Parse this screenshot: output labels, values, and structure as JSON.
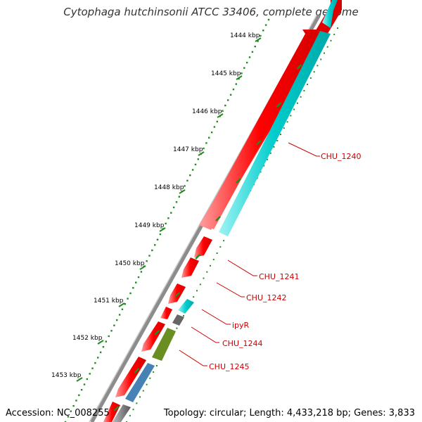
{
  "title": "Cytophaga hutchinsonii ATCC 33406, complete genome",
  "footer": {
    "accession": "Accession: NC_008255",
    "topology": "Topology: circular; Length: 4,433,218 bp; Genes: 3,833"
  },
  "ticks": [
    "1444 kbp",
    "1445 kbp",
    "1446 kbp",
    "1447 kbp",
    "1448 kbp",
    "1449 kbp",
    "1450 kbp",
    "1451 kbp",
    "1452 kbp",
    "1453 kbp"
  ],
  "gene_labels": [
    "CHU_1240",
    "CHU_1241",
    "CHU_1242",
    "ipyR",
    "CHU_1244",
    "CHU_1245"
  ],
  "colors": {
    "backbone": "#888888",
    "forward_gene": "#ff0000",
    "reverse_gene_cyan": "#00cccc",
    "reverse_gene_gray": "#666666",
    "reverse_gene_olive": "#6b8e23",
    "reverse_gene_steelblue": "#4682b4",
    "tick": "#228b22",
    "label_line": "#cc0000"
  }
}
